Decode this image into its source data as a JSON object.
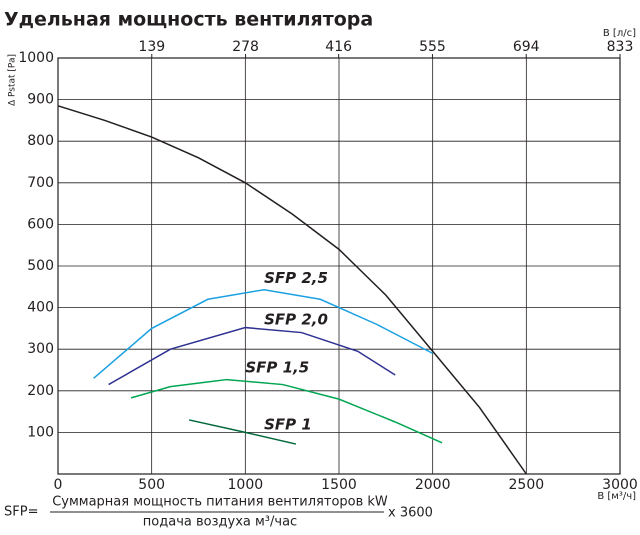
{
  "chart_data": {
    "type": "line",
    "title": "Удельная мощность вентилятора",
    "ylabel": "Δ Pstat [Pa]",
    "xlabel": "B [м³/ч]",
    "x2label": "B [л/с]",
    "xlim": [
      0,
      3000
    ],
    "xticks": [
      0,
      500,
      1000,
      1500,
      2000,
      2500,
      3000
    ],
    "x2lim": [
      0,
      833
    ],
    "x2ticks": [
      139,
      278,
      416,
      555,
      694,
      833
    ],
    "ylim": [
      0,
      1000
    ],
    "yticks": [
      100,
      200,
      300,
      400,
      500,
      600,
      700,
      800,
      900,
      1000
    ],
    "grid": true,
    "series": [
      {
        "color": "#231f20",
        "x": [
          0,
          250,
          500,
          750,
          1000,
          1250,
          1500,
          1750,
          2000,
          2250,
          2500
        ],
        "values": [
          885,
          850,
          810,
          760,
          700,
          625,
          540,
          430,
          295,
          160,
          0
        ]
      },
      {
        "name": "SFP 2,5",
        "color": "#1ba1e2",
        "x": [
          190,
          500,
          800,
          1100,
          1400,
          1700,
          2000
        ],
        "values": [
          230,
          350,
          420,
          443,
          420,
          360,
          290
        ]
      },
      {
        "name": "SFP 2,0",
        "color": "#2e3192",
        "x": [
          270,
          600,
          1000,
          1300,
          1600,
          1800
        ],
        "values": [
          215,
          300,
          352,
          340,
          295,
          238
        ]
      },
      {
        "name": "SFP 1,5",
        "color": "#00a651",
        "x": [
          390,
          600,
          900,
          1200,
          1500,
          1800,
          2050
        ],
        "values": [
          183,
          210,
          227,
          215,
          180,
          125,
          75
        ]
      },
      {
        "name": "SFP 1",
        "color": "#006838",
        "x": [
          700,
          1000,
          1270
        ],
        "values": [
          130,
          100,
          72
        ]
      }
    ],
    "formula": {
      "lhs": "SFP=",
      "numerator": "Суммарная мощность питания вентиляторов kW",
      "denominator": "подача воздуха м³/час",
      "factor": "x 3600"
    }
  }
}
